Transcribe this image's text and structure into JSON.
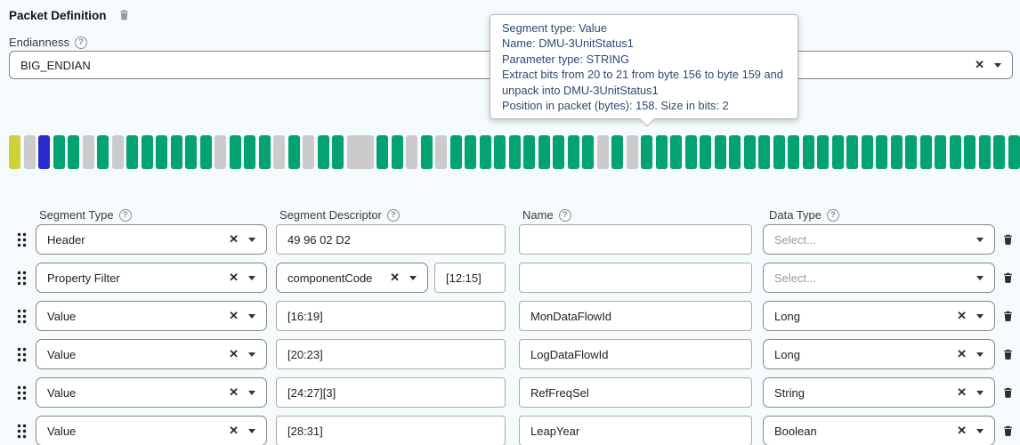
{
  "page": {
    "title": "Packet Definition",
    "endianness_label": "Endianness",
    "endianness_value": "BIG_ENDIAN"
  },
  "icons": {
    "clear_glyph": "✕",
    "help_glyph": "?"
  },
  "tooltip": {
    "lines": [
      "Segment type: Value",
      "Name: DMU-3UnitStatus1",
      "Parameter type: STRING",
      "Extract bits from 20 to 21 from byte 156 to byte 159 and unpack into DMU-3UnitStatus1",
      "Position in packet (bytes): 158. Size in bits: 2"
    ]
  },
  "packet_bars": {
    "colors": {
      "yellow": "#cdd23b",
      "gray": "#cbcbcb",
      "blue": "#2b2bcd",
      "green": "#04a173"
    },
    "sequence": [
      "yellow",
      "gray",
      "blue",
      "green",
      "green",
      "gray",
      "green",
      "gray",
      "green",
      "green",
      "green",
      "green",
      "green",
      "green",
      "gray",
      "green",
      "green",
      "green",
      "gray",
      "green",
      "gray",
      "green",
      "green",
      "gray-wide",
      "green",
      "green",
      "gray",
      "green",
      "gray",
      "green",
      "green",
      "green",
      "green",
      "green",
      "green",
      "green",
      "green",
      "green",
      "green",
      "gray",
      "green",
      "gray",
      "green",
      "green",
      "green",
      "green",
      "green",
      "green",
      "green",
      "green",
      "green",
      "green",
      "green",
      "green",
      "green",
      "green",
      "green",
      "green",
      "green",
      "green",
      "green",
      "green",
      "green",
      "green",
      "green",
      "green",
      "green",
      "green"
    ]
  },
  "table": {
    "headers": {
      "segment_type": "Segment Type",
      "segment_descriptor": "Segment Descriptor",
      "name": "Name",
      "data_type": "Data Type"
    },
    "data_type_placeholder": "Select...",
    "rows": [
      {
        "segment_type": "Header",
        "descriptor": "49 96 02 D2",
        "name": "",
        "data_type": ""
      },
      {
        "segment_type": "Property Filter",
        "descriptor_select": "componentCode",
        "descriptor_range": "[12:15]",
        "name": "",
        "data_type": ""
      },
      {
        "segment_type": "Value",
        "descriptor": "[16:19]",
        "name": "MonDataFlowId",
        "data_type": "Long"
      },
      {
        "segment_type": "Value",
        "descriptor": "[20:23]",
        "name": "LogDataFlowId",
        "data_type": "Long"
      },
      {
        "segment_type": "Value",
        "descriptor": "[24:27][3]",
        "name": "RefFreqSel",
        "data_type": "String"
      },
      {
        "segment_type": "Value",
        "descriptor": "[28:31]",
        "name": "LeapYear",
        "data_type": "Boolean"
      }
    ]
  }
}
